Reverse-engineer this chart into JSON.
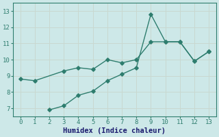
{
  "line1_x": [
    0,
    1,
    3,
    4,
    5,
    6,
    7,
    8,
    9,
    10,
    11,
    12,
    13
  ],
  "line1_y": [
    8.8,
    8.7,
    9.3,
    9.5,
    9.4,
    10.0,
    9.8,
    10.0,
    11.1,
    11.1,
    11.1,
    9.9,
    10.5
  ],
  "line2_x": [
    2,
    3,
    4,
    5,
    6,
    7,
    8,
    9,
    10,
    11,
    12,
    13
  ],
  "line2_y": [
    6.9,
    7.15,
    7.8,
    8.05,
    8.7,
    9.1,
    9.5,
    12.8,
    11.1,
    11.1,
    9.9,
    10.5
  ],
  "color": "#2e7d6e",
  "bg_color": "#cde8e8",
  "grid_color": "#c8d8d0",
  "xlabel": "Humidex (Indice chaleur)",
  "xlim": [
    -0.5,
    13.5
  ],
  "ylim": [
    6.5,
    13.5
  ],
  "xticks": [
    0,
    1,
    2,
    3,
    4,
    5,
    6,
    7,
    8,
    9,
    10,
    11,
    12,
    13
  ],
  "yticks": [
    7,
    8,
    9,
    10,
    11,
    12,
    13
  ],
  "label_fontsize": 7.5,
  "tick_fontsize": 6.5
}
